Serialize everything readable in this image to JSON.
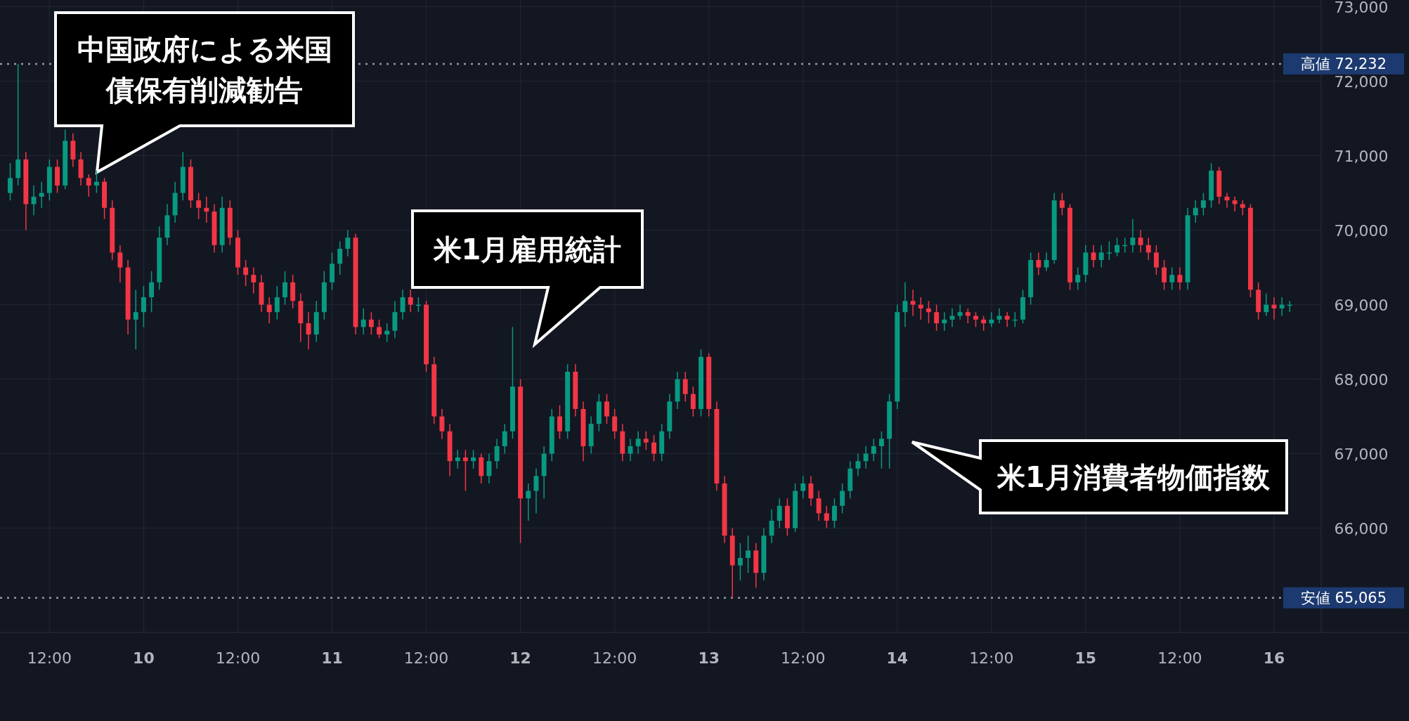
{
  "chart_data": {
    "type": "candlestick",
    "categories": [
      null,
      null,
      null,
      null,
      null,
      "12:00",
      null,
      null,
      null,
      null,
      null,
      null,
      null,
      null,
      null,
      null,
      null,
      "10",
      null,
      null,
      null,
      null,
      null,
      null,
      null,
      null,
      null,
      null,
      null,
      "12:00",
      null,
      null,
      null,
      null,
      null,
      null,
      null,
      null,
      null,
      null,
      null,
      "11",
      null,
      null,
      null,
      null,
      null,
      null,
      null,
      null,
      null,
      null,
      null,
      "12:00",
      null,
      null,
      null,
      null,
      null,
      null,
      null,
      null,
      null,
      null,
      null,
      "12",
      null,
      null,
      null,
      null,
      null,
      null,
      null,
      null,
      null,
      null,
      null,
      "12:00",
      null,
      null,
      null,
      null,
      null,
      null,
      null,
      null,
      null,
      null,
      null,
      "13",
      null,
      null,
      null,
      null,
      null,
      null,
      null,
      null,
      null,
      null,
      null,
      "12:00",
      null,
      null,
      null,
      null,
      null,
      null,
      null,
      null,
      null,
      null,
      null,
      "14",
      null,
      null,
      null,
      null,
      null,
      null,
      null,
      null,
      null,
      null,
      null,
      "12:00",
      null,
      null,
      null,
      null,
      null,
      null,
      null,
      null,
      null,
      null,
      null,
      "15",
      null,
      null,
      null,
      null,
      null,
      null,
      null,
      null,
      null,
      null,
      null,
      "12:00",
      null,
      null,
      null,
      null,
      null,
      null,
      null,
      null,
      null,
      null,
      null,
      "16",
      null,
      null
    ],
    "ohlc": [
      [
        70500,
        70900,
        70400,
        70700
      ],
      [
        70700,
        72232,
        70600,
        70950
      ],
      [
        70950,
        71050,
        70000,
        70350
      ],
      [
        70350,
        70600,
        70200,
        70450
      ],
      [
        70450,
        70650,
        70300,
        70500
      ],
      [
        70500,
        70950,
        70400,
        70850
      ],
      [
        70850,
        70950,
        70500,
        70600
      ],
      [
        70600,
        71350,
        70550,
        71200
      ],
      [
        71200,
        71300,
        70850,
        70950
      ],
      [
        70950,
        71050,
        70600,
        70700
      ],
      [
        70700,
        70750,
        70450,
        70600
      ],
      [
        70600,
        70800,
        70500,
        70650
      ],
      [
        70650,
        70700,
        70150,
        70300
      ],
      [
        70300,
        70400,
        69600,
        69700
      ],
      [
        69700,
        69800,
        69300,
        69500
      ],
      [
        69500,
        69600,
        68600,
        68800
      ],
      [
        68800,
        69200,
        68400,
        68900
      ],
      [
        68900,
        69250,
        68700,
        69100
      ],
      [
        69100,
        69450,
        68900,
        69300
      ],
      [
        69300,
        70050,
        69200,
        69900
      ],
      [
        69900,
        70350,
        69800,
        70200
      ],
      [
        70200,
        70650,
        70100,
        70500
      ],
      [
        70500,
        71050,
        70400,
        70850
      ],
      [
        70850,
        70950,
        70300,
        70400
      ],
      [
        70400,
        70500,
        70150,
        70300
      ],
      [
        70300,
        70450,
        70100,
        70250
      ],
      [
        70250,
        70350,
        69700,
        69800
      ],
      [
        69800,
        70450,
        69700,
        70300
      ],
      [
        70300,
        70400,
        69800,
        69900
      ],
      [
        69900,
        70000,
        69400,
        69500
      ],
      [
        69500,
        69600,
        69250,
        69400
      ],
      [
        69400,
        69500,
        69150,
        69300
      ],
      [
        69300,
        69400,
        68900,
        69000
      ],
      [
        69000,
        69100,
        68750,
        68900
      ],
      [
        68900,
        69250,
        68800,
        69100
      ],
      [
        69100,
        69450,
        69000,
        69300
      ],
      [
        69300,
        69400,
        68950,
        69050
      ],
      [
        69050,
        69150,
        68500,
        68750
      ],
      [
        68750,
        68900,
        68400,
        68600
      ],
      [
        68600,
        69050,
        68500,
        68900
      ],
      [
        68900,
        69450,
        68800,
        69300
      ],
      [
        69300,
        69700,
        69200,
        69550
      ],
      [
        69550,
        69850,
        69400,
        69750
      ],
      [
        69750,
        70000,
        69650,
        69900
      ],
      [
        69900,
        69950,
        68600,
        68700
      ],
      [
        68700,
        68950,
        68600,
        68800
      ],
      [
        68800,
        68900,
        68600,
        68700
      ],
      [
        68700,
        68800,
        68550,
        68600
      ],
      [
        68600,
        68750,
        68500,
        68650
      ],
      [
        68650,
        69050,
        68550,
        68900
      ],
      [
        68900,
        69200,
        68800,
        69100
      ],
      [
        69100,
        69200,
        68900,
        69000
      ],
      [
        69000,
        69100,
        68900,
        69000
      ],
      [
        69000,
        69050,
        68100,
        68200
      ],
      [
        68200,
        68300,
        67400,
        67500
      ],
      [
        67500,
        67600,
        67200,
        67300
      ],
      [
        67300,
        67400,
        66700,
        66900
      ],
      [
        66900,
        67050,
        66800,
        66950
      ],
      [
        66950,
        67050,
        66500,
        66900
      ],
      [
        66900,
        67050,
        66800,
        66950
      ],
      [
        66950,
        67000,
        66600,
        66700
      ],
      [
        66700,
        67000,
        66600,
        66900
      ],
      [
        66900,
        67200,
        66800,
        67100
      ],
      [
        67100,
        67400,
        67000,
        67300
      ],
      [
        67300,
        68700,
        67200,
        67900
      ],
      [
        67900,
        68000,
        65800,
        66400
      ],
      [
        66400,
        66600,
        66100,
        66500
      ],
      [
        66500,
        66800,
        66200,
        66700
      ],
      [
        66700,
        67100,
        66400,
        67000
      ],
      [
        67000,
        67600,
        66900,
        67500
      ],
      [
        67500,
        67650,
        67200,
        67300
      ],
      [
        67300,
        68200,
        67200,
        68100
      ],
      [
        68100,
        68200,
        67500,
        67600
      ],
      [
        67600,
        67700,
        66900,
        67100
      ],
      [
        67100,
        67500,
        67000,
        67400
      ],
      [
        67400,
        67800,
        67300,
        67700
      ],
      [
        67700,
        67800,
        67400,
        67500
      ],
      [
        67500,
        67600,
        67200,
        67300
      ],
      [
        67300,
        67400,
        66900,
        67000
      ],
      [
        67000,
        67200,
        66900,
        67100
      ],
      [
        67100,
        67300,
        67000,
        67200
      ],
      [
        67200,
        67300,
        67050,
        67150
      ],
      [
        67150,
        67250,
        66900,
        67000
      ],
      [
        67000,
        67400,
        66900,
        67300
      ],
      [
        67300,
        67800,
        67200,
        67700
      ],
      [
        67700,
        68100,
        67600,
        68000
      ],
      [
        68000,
        68100,
        67700,
        67800
      ],
      [
        67800,
        67900,
        67500,
        67600
      ],
      [
        67600,
        68400,
        67500,
        68300
      ],
      [
        68300,
        68350,
        67500,
        67600
      ],
      [
        67600,
        67700,
        66500,
        66600
      ],
      [
        66600,
        66700,
        65800,
        65900
      ],
      [
        65900,
        66000,
        65065,
        65500
      ],
      [
        65500,
        65800,
        65300,
        65600
      ],
      [
        65600,
        65900,
        65400,
        65700
      ],
      [
        65700,
        65800,
        65200,
        65400
      ],
      [
        65400,
        66000,
        65300,
        65900
      ],
      [
        65900,
        66250,
        65800,
        66100
      ],
      [
        66100,
        66400,
        66000,
        66300
      ],
      [
        66300,
        66400,
        65900,
        66000
      ],
      [
        66000,
        66600,
        65950,
        66500
      ],
      [
        66500,
        66700,
        66400,
        66600
      ],
      [
        66600,
        66700,
        66300,
        66400
      ],
      [
        66400,
        66500,
        66100,
        66200
      ],
      [
        66200,
        66300,
        66000,
        66100
      ],
      [
        66100,
        66400,
        66000,
        66300
      ],
      [
        66300,
        66600,
        66200,
        66500
      ],
      [
        66500,
        66900,
        66400,
        66800
      ],
      [
        66800,
        67000,
        66700,
        66900
      ],
      [
        66900,
        67100,
        66800,
        67000
      ],
      [
        67000,
        67200,
        66900,
        67100
      ],
      [
        67100,
        67300,
        66800,
        67200
      ],
      [
        67200,
        67800,
        66800,
        67700
      ],
      [
        67700,
        69000,
        67600,
        68900
      ],
      [
        68900,
        69300,
        68700,
        69050
      ],
      [
        69050,
        69200,
        68850,
        69000
      ],
      [
        69000,
        69100,
        68800,
        68950
      ],
      [
        68950,
        69050,
        68750,
        68900
      ],
      [
        68900,
        69000,
        68650,
        68750
      ],
      [
        68750,
        68900,
        68650,
        68800
      ],
      [
        68800,
        68950,
        68700,
        68850
      ],
      [
        68850,
        69000,
        68800,
        68900
      ],
      [
        68900,
        68950,
        68750,
        68850
      ],
      [
        68850,
        68900,
        68700,
        68800
      ],
      [
        68800,
        68850,
        68650,
        68750
      ],
      [
        68750,
        68900,
        68700,
        68800
      ],
      [
        68800,
        68950,
        68750,
        68850
      ],
      [
        68850,
        68900,
        68700,
        68800
      ],
      [
        68800,
        68900,
        68700,
        68800
      ],
      [
        68800,
        69200,
        68750,
        69100
      ],
      [
        69100,
        69700,
        69000,
        69600
      ],
      [
        69600,
        69700,
        69400,
        69500
      ],
      [
        69500,
        69700,
        69450,
        69600
      ],
      [
        69600,
        70500,
        69550,
        70400
      ],
      [
        70400,
        70500,
        70200,
        70300
      ],
      [
        70300,
        70350,
        69200,
        69300
      ],
      [
        69300,
        69500,
        69200,
        69400
      ],
      [
        69400,
        69800,
        69300,
        69700
      ],
      [
        69700,
        69800,
        69500,
        69600
      ],
      [
        69600,
        69800,
        69500,
        69700
      ],
      [
        69700,
        69850,
        69600,
        69700
      ],
      [
        69700,
        69900,
        69650,
        69800
      ],
      [
        69800,
        69900,
        69700,
        69800
      ],
      [
        69800,
        70150,
        69700,
        69900
      ],
      [
        69900,
        70000,
        69700,
        69800
      ],
      [
        69800,
        69900,
        69600,
        69700
      ],
      [
        69700,
        69800,
        69400,
        69500
      ],
      [
        69500,
        69600,
        69200,
        69300
      ],
      [
        69300,
        69500,
        69200,
        69400
      ],
      [
        69400,
        69500,
        69200,
        69300
      ],
      [
        69300,
        70300,
        69200,
        70200
      ],
      [
        70200,
        70400,
        70100,
        70300
      ],
      [
        70300,
        70500,
        70200,
        70400
      ],
      [
        70400,
        70900,
        70300,
        70800
      ],
      [
        70800,
        70850,
        70350,
        70450
      ],
      [
        70450,
        70500,
        70300,
        70400
      ],
      [
        70400,
        70450,
        70250,
        70350
      ],
      [
        70350,
        70400,
        70200,
        70300
      ],
      [
        70300,
        70350,
        69100,
        69200
      ],
      [
        69200,
        69300,
        68800,
        68900
      ],
      [
        68900,
        69150,
        68850,
        69000
      ],
      [
        69000,
        69100,
        68800,
        68950
      ],
      [
        68950,
        69100,
        68850,
        69000
      ],
      [
        69000,
        69050,
        68900,
        69000
      ]
    ],
    "colors": [
      "#089981",
      "#089981",
      "#f23645",
      "#089981",
      "#089981",
      "#089981",
      "#f23645",
      "#089981",
      "#f23645",
      "#f23645",
      "#f23645",
      "#089981",
      "#f23645",
      "#f23645",
      "#f23645",
      "#f23645",
      "#089981",
      "#089981",
      "#089981",
      "#089981",
      "#089981",
      "#089981",
      "#089981",
      "#f23645",
      "#f23645",
      "#f23645",
      "#f23645",
      "#089981",
      "#f23645",
      "#f23645",
      "#f23645",
      "#f23645",
      "#f23645",
      "#f23645",
      "#089981",
      "#089981",
      "#f23645",
      "#f23645",
      "#f23645",
      "#089981",
      "#089981",
      "#089981",
      "#089981",
      "#089981",
      "#f23645",
      "#089981",
      "#f23645",
      "#f23645",
      "#089981",
      "#089981",
      "#089981",
      "#f23645",
      "#089981",
      "#f23645",
      "#f23645",
      "#f23645",
      "#f23645",
      "#089981",
      "#f23645",
      "#089981",
      "#f23645",
      "#089981",
      "#089981",
      "#089981",
      "#089981",
      "#f23645",
      "#089981",
      "#089981",
      "#089981",
      "#089981",
      "#f23645",
      "#089981",
      "#f23645",
      "#f23645",
      "#089981",
      "#089981",
      "#f23645",
      "#f23645",
      "#f23645",
      "#089981",
      "#089981",
      "#f23645",
      "#f23645",
      "#089981",
      "#089981",
      "#089981",
      "#f23645",
      "#f23645",
      "#089981",
      "#f23645",
      "#f23645",
      "#f23645",
      "#f23645",
      "#089981",
      "#089981",
      "#f23645",
      "#089981",
      "#089981",
      "#089981",
      "#f23645",
      "#089981",
      "#089981",
      "#f23645",
      "#f23645",
      "#f23645",
      "#089981",
      "#089981",
      "#089981",
      "#089981",
      "#089981",
      "#089981",
      "#089981",
      "#089981",
      "#089981",
      "#089981",
      "#f23645",
      "#f23645",
      "#f23645",
      "#f23645",
      "#089981",
      "#089981",
      "#089981",
      "#f23645",
      "#f23645",
      "#f23645",
      "#089981",
      "#089981",
      "#f23645",
      "#089981",
      "#089981",
      "#089981",
      "#f23645",
      "#089981",
      "#089981",
      "#f23645",
      "#f23645",
      "#089981",
      "#089981",
      "#f23645",
      "#089981",
      "#089981",
      "#089981",
      "#089981",
      "#089981",
      "#f23645",
      "#f23645",
      "#f23645",
      "#f23645",
      "#089981",
      "#f23645",
      "#089981",
      "#089981",
      "#089981",
      "#089981",
      "#f23645",
      "#f23645",
      "#f23645",
      "#f23645",
      "#f23645",
      "#f23645",
      "#089981",
      "#f23645",
      "#089981",
      "#089981"
    ],
    "ylim": [
      64600,
      73090
    ],
    "yticks": [
      {
        "value": 66000,
        "label": "66,000"
      },
      {
        "value": 67000,
        "label": "67,000"
      },
      {
        "value": 68000,
        "label": "68,000"
      },
      {
        "value": 69000,
        "label": "69,000"
      },
      {
        "value": 70000,
        "label": "70,000"
      },
      {
        "value": 71000,
        "label": "71,000"
      },
      {
        "value": 72000,
        "label": "72,000"
      },
      {
        "value": 73000,
        "label": "73,000"
      }
    ],
    "grid": true,
    "ref_lines": [
      {
        "axis": "y",
        "value": 72232,
        "label": "高値 72,232",
        "color": "#9598a1",
        "line_style": "dotted"
      },
      {
        "axis": "y",
        "value": 65065,
        "label": "安値 65,065",
        "color": "#9598a1",
        "line_style": "dotted"
      }
    ],
    "annotations": [
      "中国政府による米国債保有削減勧告",
      "米1月雇用統計",
      "米1月消費者物価指数"
    ]
  }
}
